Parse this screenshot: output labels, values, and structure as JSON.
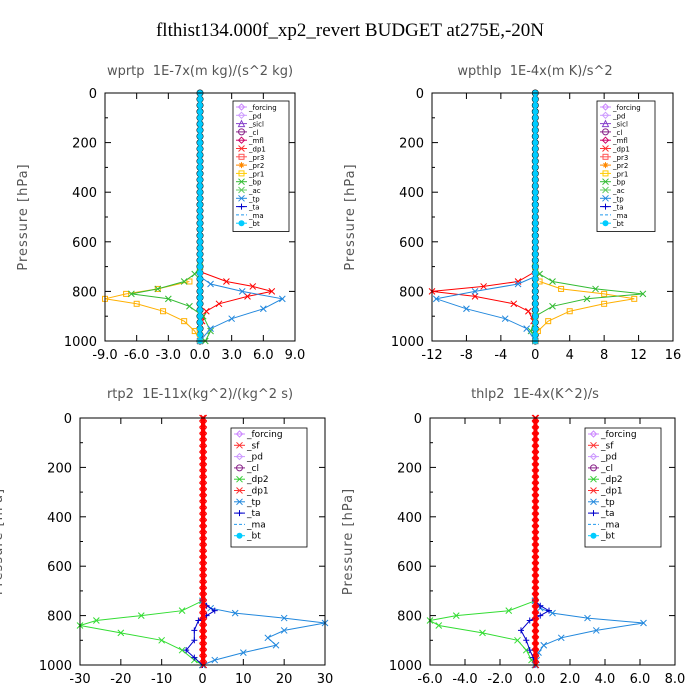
{
  "main_title": "flthist134.000f_xp2_revert  BUDGET at275E,-20N",
  "chart_data": [
    {
      "type": "line",
      "title": "wprtp  1E-7x(m kg)/(s^2 kg)",
      "ylabel": "Pressure [hPa]",
      "yticks": [
        "0",
        "200",
        "400",
        "600",
        "800",
        "1000"
      ],
      "ylim": [
        0,
        1000
      ],
      "xlim": [
        -9,
        9
      ],
      "xticks": [
        -9,
        -6,
        -3,
        0,
        3,
        6,
        9
      ],
      "xticklabels": [
        "-9.0",
        "-6.0",
        "-3.0",
        "0.0",
        "3.0",
        "6.0",
        "9.0"
      ],
      "legend": [
        "_forcing",
        "_pd",
        "_sicl",
        "_cl",
        "_mfl",
        "_dp1",
        "_pr3",
        "_pr2",
        "_pr1",
        "_bp",
        "_ac",
        "_tp",
        "_ta",
        "_ma",
        "_bt"
      ],
      "series": [
        {
          "name": "_forcing",
          "color": "#000000",
          "marker": "circle",
          "y": [
            0,
            1000
          ],
          "x": [
            0,
            0
          ]
        },
        {
          "name": "_dp1",
          "color": "#ff0000",
          "marker": "x",
          "y": [
            720,
            760,
            780,
            800,
            820,
            850,
            880,
            920,
            1000
          ],
          "x": [
            0,
            2.5,
            5.0,
            6.8,
            4.5,
            1.8,
            0.6,
            0.2,
            0
          ]
        },
        {
          "name": "_pr1",
          "color": "#ffb000",
          "marker": "square",
          "y": [
            760,
            790,
            810,
            830,
            850,
            880,
            920,
            960,
            1000
          ],
          "x": [
            -1.0,
            -4.0,
            -7.0,
            -9.0,
            -6.0,
            -3.5,
            -1.5,
            -0.5,
            0
          ]
        },
        {
          "name": "_ac",
          "color": "#33bb33",
          "marker": "x",
          "y": [
            700,
            730,
            760,
            790,
            810,
            830,
            860,
            900,
            960,
            1000
          ],
          "x": [
            0,
            -0.5,
            -1.5,
            -4.0,
            -6.5,
            -3.0,
            -1.0,
            0.3,
            1.0,
            0.5
          ]
        },
        {
          "name": "_tp",
          "color": "#2288dd",
          "marker": "x",
          "y": [
            740,
            770,
            800,
            830,
            870,
            910,
            950,
            1000
          ],
          "x": [
            0,
            1.0,
            4.0,
            7.8,
            6.0,
            3.0,
            1.0,
            0
          ]
        },
        {
          "name": "_bt",
          "color": "#00ccff",
          "marker": "filled",
          "y": [
            0,
            1000
          ],
          "x": [
            0,
            0
          ]
        }
      ]
    },
    {
      "type": "line",
      "title": "wpthlp  1E-4x(m K)/s^2",
      "ylabel": "Pressure [hPa]",
      "yticks": [
        "0",
        "200",
        "400",
        "600",
        "800",
        "1000"
      ],
      "ylim": [
        0,
        1000
      ],
      "xlim": [
        -12,
        16
      ],
      "xticks": [
        -12,
        -8,
        -4,
        0,
        4,
        8,
        12,
        16
      ],
      "xticklabels": [
        "-12",
        "-8",
        "-4",
        "0",
        "4",
        "8",
        "12",
        "16"
      ],
      "legend": [
        "_forcing",
        "_pd",
        "_sicl",
        "_cl",
        "_mfl",
        "_dp1",
        "_pr3",
        "_pr2",
        "_pr1",
        "_bp",
        "_ac",
        "_tp",
        "_ta",
        "_ma",
        "_bt"
      ],
      "series": [
        {
          "name": "_forcing",
          "color": "#000000",
          "marker": "circle",
          "y": [
            0,
            1000
          ],
          "x": [
            0,
            0
          ]
        },
        {
          "name": "_dp1",
          "color": "#ff0000",
          "marker": "x",
          "y": [
            720,
            760,
            780,
            800,
            820,
            850,
            880,
            920,
            1000
          ],
          "x": [
            0,
            -2.0,
            -6.0,
            -12.0,
            -7.0,
            -2.5,
            -0.8,
            -0.2,
            0
          ]
        },
        {
          "name": "_pr1",
          "color": "#ffb000",
          "marker": "square",
          "y": [
            760,
            790,
            810,
            830,
            850,
            880,
            920,
            960,
            1000
          ],
          "x": [
            0.5,
            3.0,
            8.0,
            11.5,
            8.0,
            4.0,
            1.5,
            0.3,
            0
          ]
        },
        {
          "name": "_ac",
          "color": "#33bb33",
          "marker": "x",
          "y": [
            700,
            730,
            760,
            790,
            810,
            830,
            860,
            900,
            960,
            1000
          ],
          "x": [
            0,
            0.5,
            2.0,
            7.0,
            12.5,
            6.0,
            2.0,
            0,
            -0.5,
            0
          ]
        },
        {
          "name": "_tp",
          "color": "#2288dd",
          "marker": "x",
          "y": [
            740,
            770,
            800,
            830,
            870,
            910,
            950,
            1000
          ],
          "x": [
            0,
            -2.0,
            -7.0,
            -11.5,
            -8.0,
            -3.5,
            -1.0,
            0
          ]
        },
        {
          "name": "_bt",
          "color": "#00ccff",
          "marker": "filled",
          "y": [
            0,
            1000
          ],
          "x": [
            0,
            0
          ]
        }
      ]
    },
    {
      "type": "line",
      "title": "rtp2  1E-11x(kg^2)/(kg^2 s)",
      "ylabel": "Pressure [hPa]",
      "yticks": [
        "0",
        "200",
        "400",
        "600",
        "800",
        "1000"
      ],
      "ylim": [
        0,
        1000
      ],
      "xlim": [
        -30,
        30
      ],
      "xticks": [
        -30,
        -20,
        -10,
        0,
        10,
        20,
        30
      ],
      "xticklabels": [
        "-30",
        "-20",
        "-10",
        "0",
        "10",
        "20",
        "30"
      ],
      "legend": [
        "_forcing",
        "_sf",
        "_pd",
        "_cl",
        "_dp2",
        "_dp1",
        "_tp",
        "_ta",
        "_ma",
        "_bt"
      ],
      "series": [
        {
          "name": "_forcing",
          "color": "#ff0000",
          "marker": "x",
          "y": [
            0,
            1000
          ],
          "x": [
            0,
            0
          ]
        },
        {
          "name": "_dp1",
          "color": "#33dd33",
          "marker": "x",
          "y": [
            740,
            780,
            800,
            820,
            840,
            870,
            900,
            940,
            980,
            1000
          ],
          "x": [
            0,
            -5,
            -15,
            -26,
            -30,
            -20,
            -10,
            -5,
            -2,
            0
          ]
        },
        {
          "name": "_tp",
          "color": "#2288dd",
          "marker": "x",
          "y": [
            740,
            770,
            790,
            810,
            830,
            860,
            890,
            920,
            950,
            980,
            1000
          ],
          "x": [
            0,
            2,
            8,
            20,
            30,
            20,
            16,
            18,
            10,
            3,
            0
          ]
        },
        {
          "name": "_ta",
          "color": "#0000cc",
          "marker": "plus",
          "y": [
            740,
            760,
            780,
            800,
            820,
            860,
            900,
            940,
            970,
            1000
          ],
          "x": [
            0,
            1,
            3,
            1,
            -1,
            -2,
            -2,
            -4,
            -2,
            0
          ]
        },
        {
          "name": "_sf",
          "color": "#ff0000",
          "marker": "x",
          "y": [
            0,
            1000
          ],
          "x": [
            0.3,
            0.3
          ]
        }
      ]
    },
    {
      "type": "line",
      "title": "thlp2  1E-4x(K^2)/s",
      "ylabel": "Pressure [hPa]",
      "yticks": [
        "0",
        "200",
        "400",
        "600",
        "800",
        "1000"
      ],
      "ylim": [
        0,
        1000
      ],
      "xlim": [
        -6,
        8
      ],
      "xticks": [
        -6,
        -4,
        -2,
        0,
        2,
        4,
        6,
        8
      ],
      "xticklabels": [
        "-6.0",
        "-4.0",
        "-2.0",
        "0.0",
        "2.0",
        "4.0",
        "6.0",
        "8.0"
      ],
      "legend": [
        "_forcing",
        "_sf",
        "_pd",
        "_cl",
        "_dp2",
        "_dp1",
        "_tp",
        "_ta",
        "_ma",
        "_bt"
      ],
      "series": [
        {
          "name": "_forcing",
          "color": "#ff0000",
          "marker": "x",
          "y": [
            0,
            1000
          ],
          "x": [
            0,
            0
          ]
        },
        {
          "name": "_dp1",
          "color": "#33dd33",
          "marker": "x",
          "y": [
            740,
            780,
            800,
            820,
            840,
            870,
            900,
            940,
            980,
            1000
          ],
          "x": [
            0,
            -1.5,
            -4.5,
            -6.0,
            -5.5,
            -3.0,
            -1.0,
            -0.5,
            -0.2,
            0
          ]
        },
        {
          "name": "_tp",
          "color": "#2288dd",
          "marker": "x",
          "y": [
            740,
            770,
            790,
            810,
            830,
            860,
            890,
            920,
            950,
            980,
            1000
          ],
          "x": [
            0,
            0.3,
            1.0,
            3.0,
            6.2,
            3.5,
            1.5,
            0.5,
            0.2,
            0.1,
            0
          ]
        },
        {
          "name": "_ta",
          "color": "#0000cc",
          "marker": "plus",
          "y": [
            740,
            760,
            780,
            800,
            820,
            860,
            900,
            940,
            970,
            1000
          ],
          "x": [
            0,
            0.3,
            0.8,
            0.3,
            -0.3,
            -0.8,
            -0.5,
            -0.3,
            -0.1,
            0
          ]
        },
        {
          "name": "_sf",
          "color": "#ff0000",
          "marker": "x",
          "y": [
            0,
            1000
          ],
          "x": [
            0.05,
            0.05
          ]
        }
      ]
    }
  ],
  "legend_styles": {
    "_forcing": {
      "color": "#cc88ff",
      "marker": "diamond"
    },
    "_pd": {
      "color": "#cc99ff",
      "marker": "diamond"
    },
    "_sicl": {
      "color": "#8844cc",
      "marker": "triangle"
    },
    "_cl": {
      "color": "#882288",
      "marker": "circle"
    },
    "_mfl": {
      "color": "#cc0066",
      "marker": "diamond"
    },
    "_dp1": {
      "color": "#ff3333",
      "marker": "x"
    },
    "_pr3": {
      "color": "#ff5555",
      "marker": "square"
    },
    "_pr2": {
      "color": "#ff8800",
      "marker": "star"
    },
    "_pr1": {
      "color": "#ffcc00",
      "marker": "square"
    },
    "_bp": {
      "color": "#33bb33",
      "marker": "x"
    },
    "_ac": {
      "color": "#66cc66",
      "marker": "x"
    },
    "_tp": {
      "color": "#2288dd",
      "marker": "x"
    },
    "_ta": {
      "color": "#0000cc",
      "marker": "plus"
    },
    "_ma": {
      "color": "#2299ee",
      "marker": "none"
    },
    "_bt": {
      "color": "#00ccff",
      "marker": "filled"
    },
    "_sf": {
      "color": "#ff3333",
      "marker": "x"
    },
    "_dp2": {
      "color": "#33cc33",
      "marker": "x"
    }
  }
}
